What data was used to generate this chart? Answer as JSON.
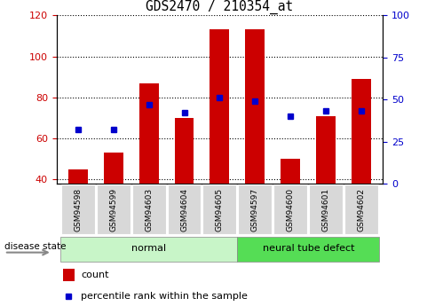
{
  "title": "GDS2470 / 210354_at",
  "categories": [
    "GSM94598",
    "GSM94599",
    "GSM94603",
    "GSM94604",
    "GSM94605",
    "GSM94597",
    "GSM94600",
    "GSM94601",
    "GSM94602"
  ],
  "count_values": [
    45,
    53,
    87,
    70,
    113,
    113,
    50,
    71,
    89
  ],
  "percentile_values": [
    32,
    32,
    47,
    42,
    51,
    49,
    40,
    43,
    43
  ],
  "ylim_left": [
    38,
    120
  ],
  "ylim_right": [
    0,
    100
  ],
  "yticks_left": [
    40,
    60,
    80,
    100,
    120
  ],
  "yticks_right": [
    0,
    25,
    50,
    75,
    100
  ],
  "bar_color": "#cc0000",
  "dot_color": "#0000cc",
  "normal_group": [
    0,
    1,
    2,
    3,
    4
  ],
  "ntd_group": [
    5,
    6,
    7,
    8
  ],
  "normal_label": "normal",
  "ntd_label": "neural tube defect",
  "normal_color_face": "#c8f5c8",
  "normal_color_edge": "#888888",
  "ntd_color_face": "#55dd55",
  "ntd_color_edge": "#888888",
  "legend_count_label": "count",
  "legend_percentile_label": "percentile rank within the sample",
  "disease_state_label": "disease state",
  "left_axis_color": "#cc0000",
  "right_axis_color": "#0000cc"
}
